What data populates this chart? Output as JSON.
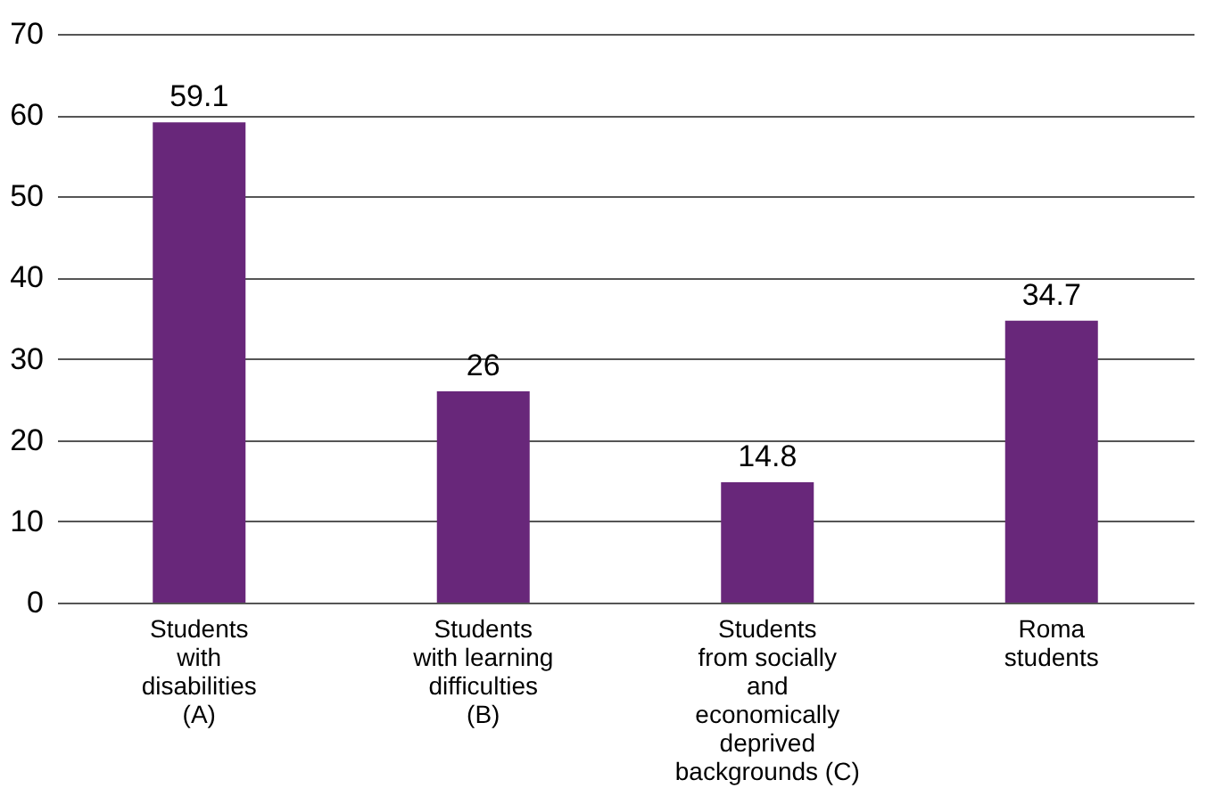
{
  "chart_data": {
    "type": "bar",
    "categories": [
      "Students\nwith\ndisabilities\n(A)",
      "Students\nwith learning\ndifficulties\n(B)",
      "Students\nfrom socially\nand\neconomically\ndeprived\nbackgrounds (C)",
      "Roma\nstudents"
    ],
    "values": [
      59.1,
      26,
      14.8,
      34.7
    ],
    "color": "#68277a",
    "ylim": [
      0,
      70
    ],
    "yticks": [
      0,
      10,
      20,
      30,
      40,
      50,
      60,
      70
    ],
    "grid": "y",
    "data_labels": true
  }
}
